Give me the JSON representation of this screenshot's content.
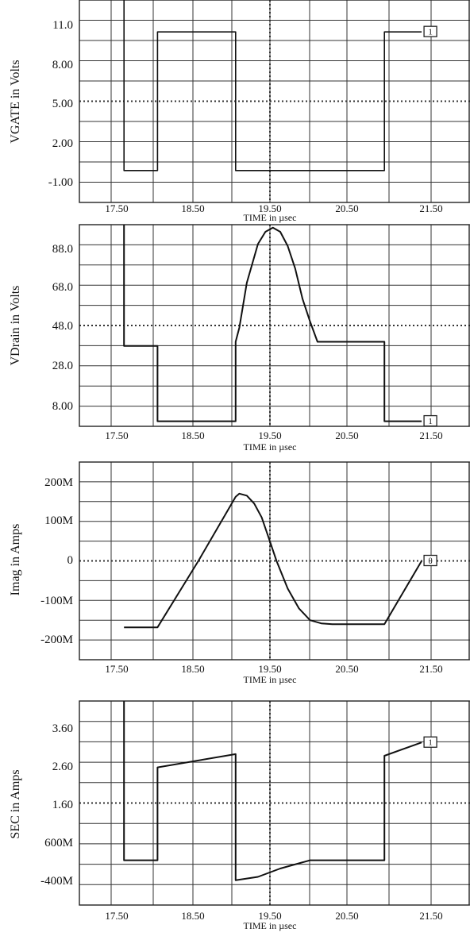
{
  "chart_data": [
    {
      "type": "line",
      "ylabel": "VGATE in Volts",
      "xlabel": "TIME in µsec",
      "x_ticks": [
        "17.50",
        "18.50",
        "19.50",
        "20.50",
        "21.50"
      ],
      "y_ticks": [
        "11.0",
        "8.00",
        "5.00",
        "2.00",
        "-1.00"
      ],
      "xlim": [
        16.9,
        22.15
      ],
      "ylim": [
        -2.3,
        12.3
      ],
      "grid": true,
      "marker_label": "1",
      "series": [
        {
          "x": [
            17.5,
            17.5,
            17.95,
            17.95,
            19.0,
            19.0,
            21.0,
            21.0,
            21.5
          ],
          "y": [
            12.3,
            0,
            0,
            10,
            10,
            0,
            0,
            10,
            10
          ]
        }
      ]
    },
    {
      "type": "line",
      "ylabel": "VDrain in Volts",
      "xlabel": "TIME in µsec",
      "x_ticks": [
        "17.50",
        "18.50",
        "19.50",
        "20.50",
        "21.50"
      ],
      "y_ticks": [
        "88.0",
        "68.0",
        "48.0",
        "28.0",
        "8.00"
      ],
      "xlim": [
        16.9,
        22.15
      ],
      "ylim": [
        0.5,
        99.5
      ],
      "grid": true,
      "marker_label": "1",
      "series": [
        {
          "x": [
            17.5,
            17.5,
            17.95,
            17.95,
            19.0,
            19.0,
            19.05,
            19.15,
            19.3,
            19.4,
            19.5,
            19.6,
            19.7,
            19.8,
            19.9,
            20.0,
            20.1,
            21.0,
            21.0,
            21.5
          ],
          "y": [
            99.5,
            40,
            40,
            3,
            3,
            42,
            49,
            71,
            90,
            96,
            98,
            96,
            89,
            78,
            63,
            52,
            42,
            42,
            3,
            3
          ]
        }
      ]
    },
    {
      "type": "line",
      "ylabel": "Imag in Amps",
      "xlabel": "TIME in µsec",
      "x_ticks": [
        "17.50",
        "18.50",
        "19.50",
        "20.50",
        "21.50"
      ],
      "y_ticks": [
        "200M",
        "100M",
        "0",
        "-100M",
        "-200M"
      ],
      "xlim": [
        16.9,
        22.15
      ],
      "ylim": [
        -250,
        250
      ],
      "grid": true,
      "marker_label": "θ",
      "series": [
        {
          "x": [
            17.5,
            17.95,
            18.5,
            19.0,
            19.05,
            19.15,
            19.25,
            19.35,
            19.45,
            19.55,
            19.7,
            19.85,
            20.0,
            20.15,
            20.3,
            21.0,
            21.5
          ],
          "y": [
            -168,
            -168,
            0,
            162,
            170,
            165,
            145,
            110,
            55,
            0,
            -70,
            -120,
            -150,
            -158,
            -160,
            -160,
            0
          ]
        }
      ]
    },
    {
      "type": "line",
      "ylabel": "SEC in Amps",
      "xlabel": "TIME in µsec",
      "x_ticks": [
        "17.50",
        "18.50",
        "19.50",
        "20.50",
        "21.50"
      ],
      "y_ticks": [
        "3.60",
        "2.60",
        "1.60",
        "600M",
        "-400M"
      ],
      "xlim": [
        16.9,
        22.15
      ],
      "ylim": [
        -1.3,
        4.85
      ],
      "grid": true,
      "marker_label": "1",
      "series": [
        {
          "x": [
            17.5,
            17.5,
            17.95,
            17.95,
            19.0,
            19.0,
            19.3,
            19.6,
            20.0,
            21.0,
            21.0,
            21.5
          ],
          "y": [
            4.85,
            0.05,
            0.05,
            2.85,
            3.25,
            -0.55,
            -0.45,
            -0.2,
            0.05,
            0.05,
            3.2,
            3.6
          ]
        }
      ]
    }
  ]
}
